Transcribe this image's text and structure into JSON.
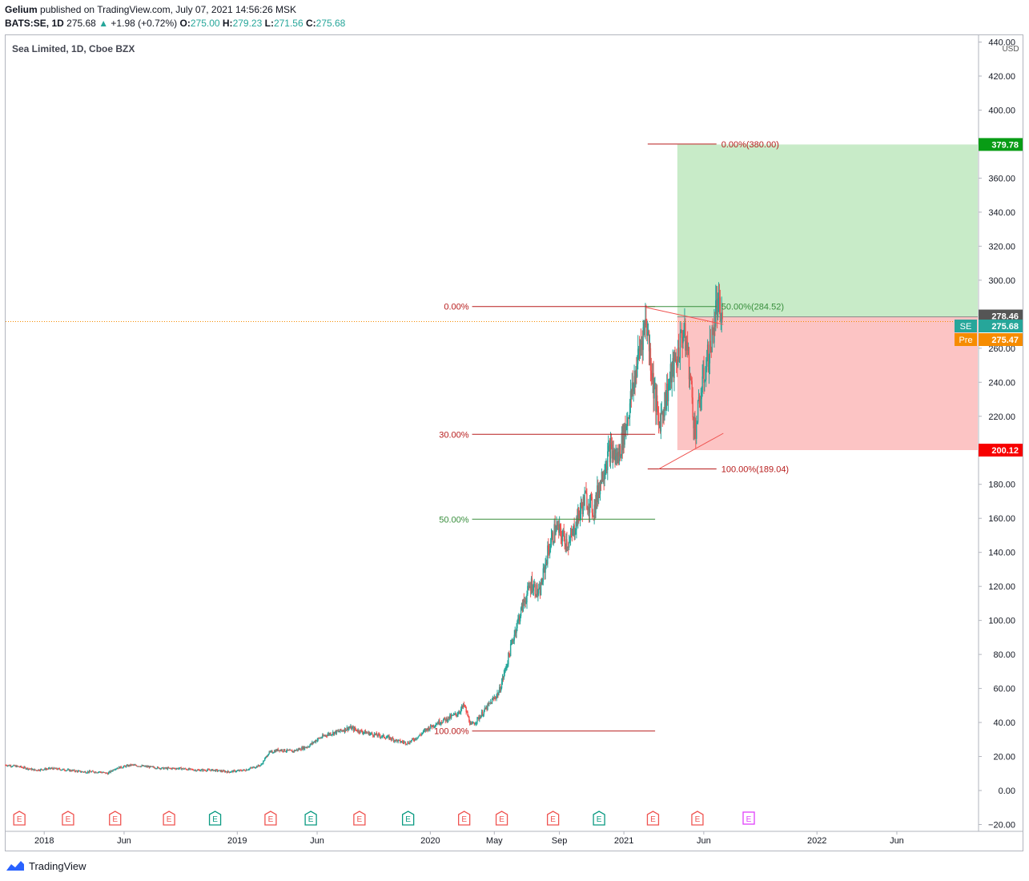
{
  "header": {
    "publisher": "Gelium",
    "published_text": " published on TradingView.com, July 07, 2021 14:56:26 MSK",
    "symbol": "BATS:SE, 1D",
    "last": "275.68",
    "change_arrow": "▲",
    "change": "+1.98 (+0.72%)",
    "o_label": "O:",
    "o_val": "275.00",
    "h_label": "H:",
    "h_val": "279.23",
    "l_label": "L:",
    "l_val": "271.56",
    "c_label": "C:",
    "c_val": "275.68"
  },
  "chart_title": "Sea Limited, 1D, Cboe BZX",
  "footer": {
    "brand": "TradingView"
  },
  "colors": {
    "up": "#26a69a",
    "down": "#ef5350",
    "fib_line": "#b71c1c",
    "fib_green": "#388e3c",
    "target_zone": "#c8ebc8",
    "stop_zone": "#fcc4c4",
    "target_badge": "#089c15",
    "stop_badge": "#f70000",
    "last_badge": "#26a69a",
    "pre_badge": "#f68c00",
    "high_badge": "#555555"
  },
  "chart_data": {
    "type": "candlestick",
    "title": "Sea Limited, 1D, Cboe BZX",
    "y_axis": {
      "unit": "USD",
      "ylim": [
        -24,
        444
      ],
      "ticks": [
        -20,
        0,
        20,
        40,
        60,
        80,
        100,
        120,
        140,
        160,
        180,
        200,
        220,
        240,
        260,
        280,
        300,
        320,
        340,
        360,
        380,
        400,
        420,
        440
      ],
      "tick_labels": [
        "−20.00",
        "0.00",
        "20.00",
        "40.00",
        "60.00",
        "80.00",
        "100.00",
        "120.00",
        "140.00",
        "160.00",
        "180.00",
        "200.00",
        "220.00",
        "240.00",
        "260.00",
        "280.00",
        "300.00",
        "320.00",
        "340.00",
        "360.00",
        "380.00",
        "400.00",
        "420.00",
        "440.00"
      ]
    },
    "x_axis": {
      "labels": [
        "2018",
        "Jun",
        "2019",
        "Jun",
        "2020",
        "May",
        "Sep",
        "2021",
        "Jun",
        "2022",
        "Jun"
      ],
      "dates": [
        "2018-01-01",
        "2018-06-01",
        "2019-01-01",
        "2019-06-01",
        "2020-01-01",
        "2020-05-01",
        "2020-09-01",
        "2021-01-01",
        "2021-06-01",
        "2022-01-01",
        "2022-06-01"
      ],
      "range": [
        "2017-10-20",
        "2022-11-01"
      ]
    },
    "close_path": [
      [
        "2017-10-20",
        15
      ],
      [
        "2017-11-15",
        14
      ],
      [
        "2017-12-15",
        12
      ],
      [
        "2018-01-15",
        13
      ],
      [
        "2018-02-15",
        12
      ],
      [
        "2018-03-15",
        11
      ],
      [
        "2018-04-15",
        11
      ],
      [
        "2018-05-01",
        10
      ],
      [
        "2018-05-15",
        13
      ],
      [
        "2018-06-15",
        15
      ],
      [
        "2018-07-15",
        14
      ],
      [
        "2018-08-15",
        13
      ],
      [
        "2018-09-15",
        13
      ],
      [
        "2018-10-15",
        12
      ],
      [
        "2018-11-15",
        12
      ],
      [
        "2018-12-15",
        11
      ],
      [
        "2019-01-15",
        12
      ],
      [
        "2019-02-15",
        15
      ],
      [
        "2019-03-01",
        22
      ],
      [
        "2019-03-20",
        24
      ],
      [
        "2019-04-15",
        23
      ],
      [
        "2019-05-15",
        26
      ],
      [
        "2019-06-01",
        30
      ],
      [
        "2019-06-20",
        33
      ],
      [
        "2019-07-15",
        35
      ],
      [
        "2019-08-01",
        37
      ],
      [
        "2019-08-20",
        35
      ],
      [
        "2019-09-15",
        33
      ],
      [
        "2019-10-15",
        31
      ],
      [
        "2019-11-01",
        29
      ],
      [
        "2019-11-20",
        28
      ],
      [
        "2019-12-10",
        32
      ],
      [
        "2019-12-25",
        36
      ],
      [
        "2020-01-15",
        40
      ],
      [
        "2020-02-01",
        42
      ],
      [
        "2020-02-20",
        45
      ],
      [
        "2020-03-05",
        50
      ],
      [
        "2020-03-18",
        38
      ],
      [
        "2020-03-28",
        41
      ],
      [
        "2020-04-10",
        46
      ],
      [
        "2020-04-25",
        52
      ],
      [
        "2020-05-10",
        58
      ],
      [
        "2020-05-25",
        75
      ],
      [
        "2020-06-10",
        95
      ],
      [
        "2020-06-25",
        110
      ],
      [
        "2020-07-10",
        122
      ],
      [
        "2020-07-25",
        115
      ],
      [
        "2020-08-10",
        140
      ],
      [
        "2020-08-25",
        155
      ],
      [
        "2020-09-05",
        150
      ],
      [
        "2020-09-20",
        145
      ],
      [
        "2020-10-05",
        160
      ],
      [
        "2020-10-20",
        172
      ],
      [
        "2020-11-05",
        165
      ],
      [
        "2020-11-20",
        185
      ],
      [
        "2020-12-05",
        200
      ],
      [
        "2020-12-20",
        195
      ],
      [
        "2021-01-05",
        215
      ],
      [
        "2021-01-20",
        240
      ],
      [
        "2021-02-01",
        262
      ],
      [
        "2021-02-12",
        278
      ],
      [
        "2021-02-25",
        240
      ],
      [
        "2021-03-08",
        215
      ],
      [
        "2021-03-20",
        230
      ],
      [
        "2021-04-01",
        245
      ],
      [
        "2021-04-12",
        255
      ],
      [
        "2021-04-22",
        270
      ],
      [
        "2021-05-01",
        260
      ],
      [
        "2021-05-10",
        230
      ],
      [
        "2021-05-15",
        210
      ],
      [
        "2021-05-25",
        230
      ],
      [
        "2021-06-05",
        250
      ],
      [
        "2021-06-15",
        262
      ],
      [
        "2021-06-25",
        285
      ],
      [
        "2021-07-07",
        275.68
      ]
    ],
    "last_price": 275.68,
    "price_labels": {
      "target": "379.78",
      "high": "278.46",
      "last_tag": "SE",
      "last": "275.68",
      "pre_tag": "Pre",
      "pre": "275.47",
      "stop": "200.12"
    },
    "fib_left": [
      {
        "label": "0.00%",
        "price": 284.52,
        "color": "fib_line"
      },
      {
        "label": "30.00%",
        "price": 209.4,
        "color": "fib_line"
      },
      {
        "label": "50.00%",
        "price": 159.5,
        "color": "fib_green"
      },
      {
        "label": "100.00%",
        "price": 35.0,
        "color": "fib_line"
      }
    ],
    "fib_right": [
      {
        "label": "0.00%(380.00)",
        "price": 380.0,
        "color": "fib_line"
      },
      {
        "label": "50.00%(284.52)",
        "price": 284.52,
        "color": "fib_green"
      },
      {
        "label": "100.00%(189.04)",
        "price": 189.04,
        "color": "fib_line"
      }
    ],
    "position": {
      "entry": 278.46,
      "target": 379.78,
      "stop": 200.12,
      "start": "2021-04-12",
      "end": "2022-11-01"
    },
    "earnings": [
      {
        "date": "2017-11-15",
        "kind": "red"
      },
      {
        "date": "2018-02-15",
        "kind": "red"
      },
      {
        "date": "2018-05-15",
        "kind": "red"
      },
      {
        "date": "2018-08-25",
        "kind": "red"
      },
      {
        "date": "2018-11-20",
        "kind": "green"
      },
      {
        "date": "2019-03-05",
        "kind": "red"
      },
      {
        "date": "2019-05-20",
        "kind": "green"
      },
      {
        "date": "2019-08-20",
        "kind": "red"
      },
      {
        "date": "2019-11-20",
        "kind": "green"
      },
      {
        "date": "2020-03-05",
        "kind": "red"
      },
      {
        "date": "2020-05-15",
        "kind": "red"
      },
      {
        "date": "2020-08-20",
        "kind": "red"
      },
      {
        "date": "2020-11-15",
        "kind": "green"
      },
      {
        "date": "2021-02-25",
        "kind": "red"
      },
      {
        "date": "2021-05-20",
        "kind": "red"
      },
      {
        "date": "2021-08-25",
        "kind": "future"
      }
    ],
    "earnings_letter": "E"
  }
}
